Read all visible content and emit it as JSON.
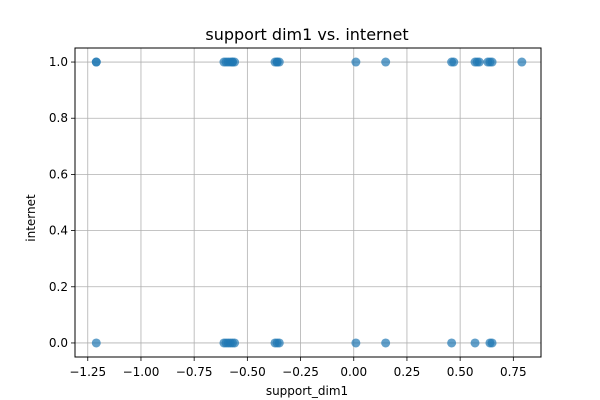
{
  "chart_data": {
    "type": "scatter",
    "title": "support dim1 vs. internet",
    "xlabel": "support_dim1",
    "ylabel": "internet",
    "xlim": [
      -1.31,
      0.88
    ],
    "ylim": [
      -0.05,
      1.05
    ],
    "xticks": [
      -1.25,
      -1.0,
      -0.75,
      -0.5,
      -0.25,
      0.0,
      0.25,
      0.5,
      0.75
    ],
    "xtick_labels": [
      "−1.25",
      "−1.00",
      "−0.75",
      "−0.50",
      "−0.25",
      "0.00",
      "0.25",
      "0.50",
      "0.75"
    ],
    "yticks": [
      0.0,
      0.2,
      0.4,
      0.6,
      0.8,
      1.0
    ],
    "ytick_labels": [
      "0.0",
      "0.2",
      "0.4",
      "0.6",
      "0.8",
      "1.0"
    ],
    "grid": true,
    "marker_color": "#1f77b4",
    "marker_alpha": 0.7,
    "series": [
      {
        "x": [
          -1.21,
          -1.21,
          -0.61,
          -0.6,
          -0.59,
          -0.58,
          -0.57,
          -0.57,
          -0.56,
          -0.37,
          -0.36,
          -0.36,
          -0.35,
          0.01,
          0.15,
          0.46,
          0.47,
          0.57,
          0.58,
          0.59,
          0.63,
          0.64,
          0.65,
          0.79
        ],
        "y": [
          1,
          1,
          1,
          1,
          1,
          1,
          1,
          1,
          1,
          1,
          1,
          1,
          1,
          1,
          1,
          1,
          1,
          1,
          1,
          1,
          1,
          1,
          1,
          1
        ]
      },
      {
        "x": [
          -1.21,
          -0.61,
          -0.6,
          -0.59,
          -0.58,
          -0.57,
          -0.56,
          -0.37,
          -0.36,
          -0.35,
          0.01,
          0.15,
          0.46,
          0.57,
          0.64,
          0.65
        ],
        "y": [
          0,
          0,
          0,
          0,
          0,
          0,
          0,
          0,
          0,
          0,
          0,
          0,
          0,
          0,
          0,
          0
        ]
      }
    ]
  }
}
